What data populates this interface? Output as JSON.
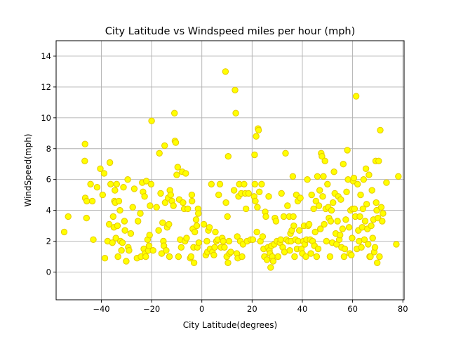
{
  "chart_data": {
    "type": "scatter",
    "title": "City Latitude vs Windspeed miles per hour (mph)",
    "xlabel": "City Latitude(degrees)",
    "ylabel": "WindSpeed(mph)",
    "xlim": [
      -58,
      80.5
    ],
    "ylim": [
      -1.8,
      15
    ],
    "xticks": [
      -40,
      -20,
      0,
      20,
      40,
      60,
      80
    ],
    "yticks": [
      0,
      2,
      4,
      6,
      8,
      10,
      12,
      14
    ],
    "grid": true,
    "marker_fill": "#ffff00",
    "marker_edge": "#e6c800",
    "points": [
      [
        -54.8,
        2.6
      ],
      [
        -53.2,
        3.6
      ],
      [
        -46.5,
        8.3
      ],
      [
        -46.6,
        7.2
      ],
      [
        -46.4,
        4.8
      ],
      [
        -45.8,
        4.6
      ],
      [
        -45.9,
        3.5
      ],
      [
        -44.3,
        5.7
      ],
      [
        -43.6,
        4.6
      ],
      [
        -43.2,
        2.1
      ],
      [
        -41.7,
        5.5
      ],
      [
        -40.4,
        6.7
      ],
      [
        -39.5,
        5.0
      ],
      [
        -38.9,
        6.4
      ],
      [
        -38.6,
        0.9
      ],
      [
        -37.5,
        2.0
      ],
      [
        -36.9,
        3.1
      ],
      [
        -36.6,
        7.1
      ],
      [
        -36.3,
        5.7
      ],
      [
        -35.6,
        1.9
      ],
      [
        -35.3,
        3.6
      ],
      [
        -35.0,
        2.9
      ],
      [
        -34.8,
        4.6
      ],
      [
        -34.6,
        5.3
      ],
      [
        -34.5,
        4.5
      ],
      [
        -34.2,
        2.2
      ],
      [
        -33.9,
        5.7
      ],
      [
        -33.6,
        3.0
      ],
      [
        -33.4,
        1.0
      ],
      [
        -33.0,
        4.6
      ],
      [
        -32.6,
        4.0
      ],
      [
        -32.4,
        2.0
      ],
      [
        -32.0,
        1.4
      ],
      [
        -31.6,
        1.9
      ],
      [
        -31.2,
        5.5
      ],
      [
        -30.8,
        3.3
      ],
      [
        -30.6,
        2.7
      ],
      [
        -30.1,
        0.7
      ],
      [
        -29.5,
        6.0
      ],
      [
        -29.3,
        1.6
      ],
      [
        -29.0,
        1.4
      ],
      [
        -28.3,
        2.5
      ],
      [
        -27.5,
        4.2
      ],
      [
        -26.9,
        5.4
      ],
      [
        -25.8,
        0.9
      ],
      [
        -25.4,
        3.3
      ],
      [
        -24.5,
        3.8
      ],
      [
        -24.2,
        1.0
      ],
      [
        -23.7,
        5.8
      ],
      [
        -23.4,
        5.2
      ],
      [
        -23.1,
        1.5
      ],
      [
        -22.8,
        4.9
      ],
      [
        -22.6,
        1.2
      ],
      [
        -22.3,
        1.0
      ],
      [
        -22.1,
        5.9
      ],
      [
        -21.6,
        2.1
      ],
      [
        -21.3,
        1.4
      ],
      [
        -21.0,
        1.7
      ],
      [
        -20.8,
        2.4
      ],
      [
        -20.6,
        4.3
      ],
      [
        -20.2,
        5.7
      ],
      [
        -20.0,
        9.8
      ],
      [
        -19.4,
        1.4
      ],
      [
        -18.0,
        4.2
      ],
      [
        -17.2,
        2.7
      ],
      [
        -16.9,
        7.7
      ],
      [
        -16.4,
        5.1
      ],
      [
        -16.0,
        1.2
      ],
      [
        -15.6,
        3.2
      ],
      [
        -15.3,
        2.0
      ],
      [
        -15.1,
        1.7
      ],
      [
        -14.8,
        8.2
      ],
      [
        -14.6,
        4.5
      ],
      [
        -14.2,
        1.4
      ],
      [
        -13.8,
        2.9
      ],
      [
        -13.4,
        4.8
      ],
      [
        -13.1,
        3.1
      ],
      [
        -12.9,
        1.0
      ],
      [
        -12.7,
        5.3
      ],
      [
        -12.4,
        5.0
      ],
      [
        -11.9,
        4.6
      ],
      [
        -11.3,
        4.3
      ],
      [
        -10.9,
        10.3
      ],
      [
        -10.7,
        8.5
      ],
      [
        -10.4,
        8.4
      ],
      [
        -10.0,
        6.3
      ],
      [
        -9.6,
        6.8
      ],
      [
        -9.3,
        1.0
      ],
      [
        -9.0,
        4.7
      ],
      [
        -8.6,
        2.1
      ],
      [
        -8.2,
        1.6
      ],
      [
        -7.8,
        6.5
      ],
      [
        -7.5,
        4.5
      ],
      [
        -7.0,
        4.1
      ],
      [
        -6.7,
        2.0
      ],
      [
        -6.4,
        6.4
      ],
      [
        -6.1,
        2.2
      ],
      [
        -5.6,
        4.1
      ],
      [
        -4.6,
        0.9
      ],
      [
        -4.3,
        1.0
      ],
      [
        -4.0,
        5.0
      ],
      [
        -3.9,
        4.6
      ],
      [
        -3.6,
        2.8
      ],
      [
        -3.3,
        1.6
      ],
      [
        -3.1,
        0.6
      ],
      [
        -2.8,
        2.6
      ],
      [
        -2.3,
        3.4
      ],
      [
        -2.0,
        3.0
      ],
      [
        -1.8,
        1.6
      ],
      [
        -1.5,
        4.1
      ],
      [
        -1.4,
        3.8
      ],
      [
        -1.2,
        1.9
      ],
      [
        0.8,
        3.1
      ],
      [
        1.6,
        1.1
      ],
      [
        2.0,
        2.0
      ],
      [
        2.2,
        1.3
      ],
      [
        2.6,
        2.7
      ],
      [
        3.0,
        2.9
      ],
      [
        3.3,
        1.5
      ],
      [
        3.8,
        5.7
      ],
      [
        4.2,
        1.3
      ],
      [
        4.8,
        1.1
      ],
      [
        5.1,
        1.6
      ],
      [
        5.4,
        2.6
      ],
      [
        5.8,
        2.0
      ],
      [
        6.3,
        2.1
      ],
      [
        6.7,
        5.0
      ],
      [
        7.2,
        5.7
      ],
      [
        7.6,
        1.6
      ],
      [
        8.1,
        2.2
      ],
      [
        8.5,
        2.0
      ],
      [
        9.0,
        1.6
      ],
      [
        9.4,
        13.0
      ],
      [
        9.6,
        4.5
      ],
      [
        9.9,
        1.0
      ],
      [
        10.2,
        3.6
      ],
      [
        10.4,
        0.6
      ],
      [
        10.5,
        7.5
      ],
      [
        10.8,
        2.0
      ],
      [
        11.0,
        1.2
      ],
      [
        11.5,
        1.3
      ],
      [
        12.8,
        5.3
      ],
      [
        13.2,
        11.8
      ],
      [
        13.5,
        10.3
      ],
      [
        13.9,
        1.2
      ],
      [
        14.1,
        2.3
      ],
      [
        14.3,
        0.9
      ],
      [
        14.6,
        4.9
      ],
      [
        14.9,
        5.7
      ],
      [
        15.3,
        2.0
      ],
      [
        15.7,
        5.1
      ],
      [
        16.0,
        1.0
      ],
      [
        16.4,
        1.8
      ],
      [
        16.8,
        5.7
      ],
      [
        17.3,
        5.1
      ],
      [
        17.6,
        4.1
      ],
      [
        18.0,
        2.0
      ],
      [
        18.6,
        5.1
      ],
      [
        19.5,
        2.1
      ],
      [
        20.3,
        2.1
      ],
      [
        20.8,
        4.9
      ],
      [
        21.0,
        7.6
      ],
      [
        21.1,
        5.7
      ],
      [
        21.3,
        4.6
      ],
      [
        21.6,
        8.8
      ],
      [
        21.9,
        2.6
      ],
      [
        22.1,
        4.2
      ],
      [
        22.4,
        9.3
      ],
      [
        22.6,
        9.2
      ],
      [
        22.9,
        5.2
      ],
      [
        23.3,
        2.0
      ],
      [
        23.8,
        5.7
      ],
      [
        24.2,
        2.3
      ],
      [
        24.6,
        1.5
      ],
      [
        24.9,
        1.0
      ],
      [
        25.2,
        3.9
      ],
      [
        25.5,
        3.6
      ],
      [
        25.9,
        0.8
      ],
      [
        26.3,
        1.6
      ],
      [
        26.6,
        4.9
      ],
      [
        26.9,
        1.4
      ],
      [
        27.1,
        1.2
      ],
      [
        27.4,
        0.3
      ],
      [
        27.7,
        1.7
      ],
      [
        28.0,
        1.0
      ],
      [
        28.4,
        0.7
      ],
      [
        28.8,
        1.8
      ],
      [
        29.1,
        3.5
      ],
      [
        29.5,
        3.3
      ],
      [
        29.9,
        2.0
      ],
      [
        30.3,
        1.0
      ],
      [
        31.1,
        1.9
      ],
      [
        31.4,
        2.1
      ],
      [
        31.7,
        5.1
      ],
      [
        32.2,
        1.6
      ],
      [
        32.6,
        3.6
      ],
      [
        32.9,
        1.3
      ],
      [
        33.3,
        7.7
      ],
      [
        33.7,
        2.1
      ],
      [
        34.1,
        4.3
      ],
      [
        34.5,
        2.0
      ],
      [
        34.8,
        3.6
      ],
      [
        35.0,
        1.4
      ],
      [
        35.3,
        2.5
      ],
      [
        35.5,
        2.0
      ],
      [
        35.8,
        2.7
      ],
      [
        36.2,
        6.2
      ],
      [
        36.4,
        3.6
      ],
      [
        36.6,
        3.0
      ],
      [
        36.9,
        1.0
      ],
      [
        37.3,
        2.1
      ],
      [
        37.6,
        5.0
      ],
      [
        37.9,
        1.5
      ],
      [
        38.2,
        4.6
      ],
      [
        38.4,
        2.0
      ],
      [
        38.8,
        2.7
      ],
      [
        39.2,
        4.8
      ],
      [
        39.6,
        1.5
      ],
      [
        40.0,
        1.2
      ],
      [
        40.4,
        2.0
      ],
      [
        40.7,
        3.0
      ],
      [
        41.0,
        1.8
      ],
      [
        41.4,
        1.0
      ],
      [
        41.7,
        2.1
      ],
      [
        42.0,
        6.0
      ],
      [
        42.3,
        3.0
      ],
      [
        42.7,
        3.1
      ],
      [
        43.1,
        2.1
      ],
      [
        43.4,
        1.2
      ],
      [
        43.7,
        5.0
      ],
      [
        44.1,
        2.0
      ],
      [
        44.5,
        4.1
      ],
      [
        44.8,
        1.7
      ],
      [
        45.1,
        2.6
      ],
      [
        45.4,
        4.6
      ],
      [
        45.7,
        1.0
      ],
      [
        46.0,
        6.2
      ],
      [
        46.3,
        1.5
      ],
      [
        46.6,
        4.3
      ],
      [
        46.9,
        5.3
      ],
      [
        47.2,
        2.8
      ],
      [
        47.5,
        7.7
      ],
      [
        47.8,
        7.5
      ],
      [
        48.1,
        4.9
      ],
      [
        48.4,
        6.2
      ],
      [
        48.7,
        3.1
      ],
      [
        49.0,
        7.2
      ],
      [
        49.3,
        4.1
      ],
      [
        49.6,
        2.0
      ],
      [
        50.0,
        5.7
      ],
      [
        50.3,
        4.2
      ],
      [
        50.6,
        3.5
      ],
      [
        51.0,
        1.0
      ],
      [
        51.3,
        3.3
      ],
      [
        51.6,
        4.0
      ],
      [
        51.9,
        1.9
      ],
      [
        52.2,
        4.5
      ],
      [
        52.6,
        6.5
      ],
      [
        52.9,
        5.1
      ],
      [
        53.3,
        2.5
      ],
      [
        53.6,
        1.8
      ],
      [
        54.0,
        3.3
      ],
      [
        54.3,
        4.9
      ],
      [
        54.7,
        2.1
      ],
      [
        55.0,
        2.4
      ],
      [
        55.3,
        4.7
      ],
      [
        55.6,
        1.6
      ],
      [
        56.0,
        2.8
      ],
      [
        56.3,
        7.0
      ],
      [
        56.6,
        1.0
      ],
      [
        56.9,
        1.5
      ],
      [
        57.3,
        3.4
      ],
      [
        57.6,
        5.2
      ],
      [
        57.9,
        7.9
      ],
      [
        58.2,
        6.0
      ],
      [
        58.6,
        2.9
      ],
      [
        58.9,
        1.2
      ],
      [
        59.2,
        4.0
      ],
      [
        59.5,
        1.1
      ],
      [
        59.8,
        2.2
      ],
      [
        60.0,
        4.1
      ],
      [
        60.2,
        5.9
      ],
      [
        60.5,
        6.1
      ],
      [
        60.8,
        4.1
      ],
      [
        61.1,
        3.6
      ],
      [
        61.4,
        11.4
      ],
      [
        61.7,
        1.5
      ],
      [
        62.0,
        5.7
      ],
      [
        62.3,
        2.7
      ],
      [
        62.6,
        2.0
      ],
      [
        62.9,
        3.6
      ],
      [
        63.2,
        5.0
      ],
      [
        63.5,
        1.6
      ],
      [
        63.8,
        2.9
      ],
      [
        64.1,
        4.1
      ],
      [
        64.4,
        6.0
      ],
      [
        64.7,
        2.1
      ],
      [
        65.0,
        3.3
      ],
      [
        65.3,
        6.7
      ],
      [
        65.6,
        4.4
      ],
      [
        65.9,
        2.8
      ],
      [
        66.2,
        1.8
      ],
      [
        66.5,
        6.3
      ],
      [
        66.8,
        1.0
      ],
      [
        67.1,
        1.0
      ],
      [
        67.4,
        3.0
      ],
      [
        67.7,
        5.3
      ],
      [
        68.0,
        2.2
      ],
      [
        68.3,
        3.4
      ],
      [
        68.6,
        1.3
      ],
      [
        68.9,
        1.6
      ],
      [
        69.2,
        7.2
      ],
      [
        69.4,
        4.5
      ],
      [
        69.6,
        4.0
      ],
      [
        69.8,
        0.6
      ],
      [
        70.1,
        3.5
      ],
      [
        70.4,
        7.2
      ],
      [
        70.7,
        1.0
      ],
      [
        71.0,
        9.2
      ],
      [
        71.4,
        4.2
      ],
      [
        71.8,
        3.3
      ],
      [
        72.1,
        3.8
      ],
      [
        73.5,
        5.8
      ],
      [
        77.4,
        1.8
      ],
      [
        78.2,
        6.2
      ]
    ]
  }
}
